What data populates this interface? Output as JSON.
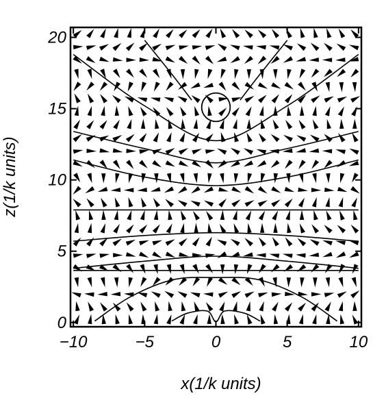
{
  "chart_data": {
    "type": "vector-field",
    "xlabel": "x(1/k units)",
    "ylabel": "z(1/k units)",
    "xlim": [
      -10.2,
      10.2
    ],
    "ylim": [
      -0.3,
      20.7
    ],
    "x_ticks": [
      {
        "value": -10,
        "label": "−10"
      },
      {
        "value": -5,
        "label": "−5"
      },
      {
        "value": 0,
        "label": "0"
      },
      {
        "value": 5,
        "label": "5"
      },
      {
        "value": 10,
        "label": "10"
      }
    ],
    "y_ticks": [
      {
        "value": 0,
        "label": "0"
      },
      {
        "value": 5,
        "label": "5"
      },
      {
        "value": 10,
        "label": "10"
      },
      {
        "value": 15,
        "label": "15"
      },
      {
        "value": 20,
        "label": "20"
      }
    ],
    "grid": false,
    "circle": {
      "x": 0,
      "z": 15.1,
      "r": 1.0
    },
    "field_lines": [
      {
        "points": [
          [
            -10,
            18.8
          ],
          [
            -5,
            15.2
          ],
          [
            0,
            12.75
          ],
          [
            5,
            15.2
          ],
          [
            10,
            18.8
          ]
        ]
      },
      {
        "points": [
          [
            -10,
            13.4
          ],
          [
            -5,
            12.2
          ],
          [
            0,
            11.2
          ],
          [
            5,
            12.2
          ],
          [
            10,
            13.4
          ]
        ]
      },
      {
        "points": [
          [
            -10,
            11.4
          ],
          [
            -5,
            10.2
          ],
          [
            0,
            9.6
          ],
          [
            5,
            10.2
          ],
          [
            10,
            11.4
          ]
        ]
      },
      {
        "points": [
          [
            -10,
            7.9
          ],
          [
            -5,
            7.9
          ],
          [
            0,
            7.9
          ],
          [
            5,
            7.9
          ],
          [
            10,
            7.9
          ]
        ]
      },
      {
        "points": [
          [
            -10,
            5.7
          ],
          [
            -5,
            6.1
          ],
          [
            0,
            6.3
          ],
          [
            5,
            6.1
          ],
          [
            10,
            5.7
          ]
        ]
      },
      {
        "points": [
          [
            -10,
            3.8
          ],
          [
            -5,
            4.3
          ],
          [
            0,
            4.65
          ],
          [
            5,
            4.3
          ],
          [
            10,
            3.8
          ]
        ]
      },
      {
        "points": [
          [
            -10,
            3.65
          ],
          [
            -5,
            3.65
          ],
          [
            0,
            3.65
          ],
          [
            5,
            3.65
          ],
          [
            10,
            3.65
          ]
        ]
      },
      {
        "points": [
          [
            -8.5,
            0.1
          ],
          [
            -6,
            1.8
          ],
          [
            -3,
            3.0
          ],
          [
            0,
            3.15
          ],
          [
            3,
            3.0
          ],
          [
            6,
            1.8
          ],
          [
            8.5,
            0.1
          ]
        ]
      },
      {
        "points": [
          [
            -3.1,
            0.1
          ],
          [
            -2,
            0.65
          ],
          [
            -0.6,
            0.8
          ],
          [
            0,
            0.05
          ],
          [
            0.6,
            0.8
          ],
          [
            2,
            0.65
          ],
          [
            3.1,
            0.1
          ]
        ]
      },
      {
        "points": [
          [
            -5,
            19.8
          ],
          [
            -3,
            17.3
          ],
          [
            -1.7,
            15.6
          ]
        ]
      },
      {
        "points": [
          [
            5,
            19.8
          ],
          [
            3,
            17.3
          ],
          [
            1.7,
            15.6
          ]
        ]
      }
    ]
  }
}
